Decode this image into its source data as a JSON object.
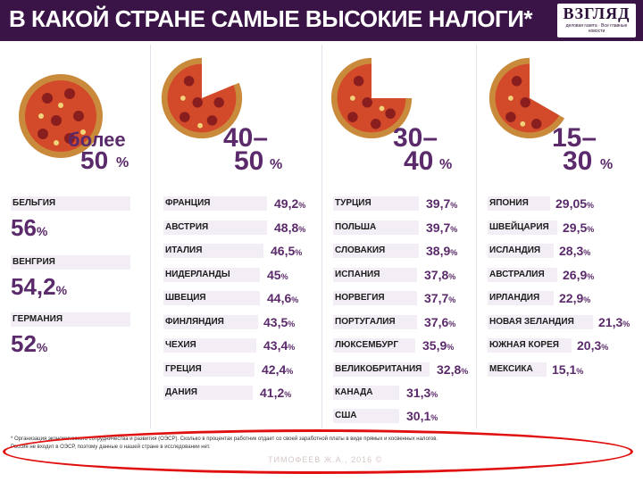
{
  "header": {
    "title": "В КАКОЙ СТРАНЕ САМЫЕ ВЫСОКИЕ НАЛОГИ*",
    "logo": "ВЗГЛЯД",
    "logo_sub": "деловая газета · Все главные новости"
  },
  "pct": "%",
  "brackets": [
    {
      "top": "более",
      "bottom": "50"
    },
    {
      "top": "40–",
      "bottom": "50"
    },
    {
      "top": "30–",
      "bottom": "40"
    },
    {
      "top": "15–",
      "bottom": "30"
    }
  ],
  "col1": [
    {
      "country": "БЕЛЬГИЯ",
      "value": "56"
    },
    {
      "country": "ВЕНГРИЯ",
      "value": "54,2"
    },
    {
      "country": "ГЕРМАНИЯ",
      "value": "52"
    }
  ],
  "col2": [
    {
      "country": "ФРАНЦИЯ",
      "value": "49,2"
    },
    {
      "country": "АВСТРИЯ",
      "value": "48,8"
    },
    {
      "country": "ИТАЛИЯ",
      "value": "46,5"
    },
    {
      "country": "НИДЕРЛАНДЫ",
      "value": "45"
    },
    {
      "country": "ШВЕЦИЯ",
      "value": "44,6"
    },
    {
      "country": "ФИНЛЯНДИЯ",
      "value": "43,5"
    },
    {
      "country": "ЧЕХИЯ",
      "value": "43,4"
    },
    {
      "country": "ГРЕЦИЯ",
      "value": "42,4"
    },
    {
      "country": "ДАНИЯ",
      "value": "41,2"
    }
  ],
  "col3": [
    {
      "country": "ТУРЦИЯ",
      "value": "39,7"
    },
    {
      "country": "ПОЛЬША",
      "value": "39,7"
    },
    {
      "country": "СЛОВАКИЯ",
      "value": "38,9"
    },
    {
      "country": "ИСПАНИЯ",
      "value": "37,8"
    },
    {
      "country": "НОРВЕГИЯ",
      "value": "37,7"
    },
    {
      "country": "ПОРТУГАЛИЯ",
      "value": "37,6"
    },
    {
      "country": "ЛЮКСЕМБУРГ",
      "value": "35,9"
    },
    {
      "country": "ВЕЛИКОБРИТАНИЯ",
      "value": "32,8"
    },
    {
      "country": "КАНАДА",
      "value": "31,3"
    },
    {
      "country": "США",
      "value": "30,1"
    }
  ],
  "col4": [
    {
      "country": "ЯПОНИЯ",
      "value": "29,05"
    },
    {
      "country": "ШВЕЙЦАРИЯ",
      "value": "29,5"
    },
    {
      "country": "ИСЛАНДИЯ",
      "value": "28,3"
    },
    {
      "country": "АВСТРАЛИЯ",
      "value": "26,9"
    },
    {
      "country": "ИРЛАНДИЯ",
      "value": "22,9"
    },
    {
      "country": "НОВАЯ ЗЕЛАНДИЯ",
      "value": "21,3"
    },
    {
      "country": "ЮЖНАЯ КОРЕЯ",
      "value": "20,3"
    },
    {
      "country": "МЕКСИКА",
      "value": "15,1"
    }
  ],
  "footnote": {
    "line1": "* Организация экономического сотрудничества и развития (ОЭСР). Сколько в процентах работник отдает со своей заработной платы в виде прямых и косвенных налогов.",
    "line2": "Россия не входит в ОЭСР, поэтому данные о нашей стране в исследовании нет."
  },
  "watermark": "ТИМОФЕЕВ Ж.А., 2016 ©",
  "colors": {
    "header": "#3a1447",
    "accent": "#5b2a6b",
    "highlight": "#e11010"
  }
}
